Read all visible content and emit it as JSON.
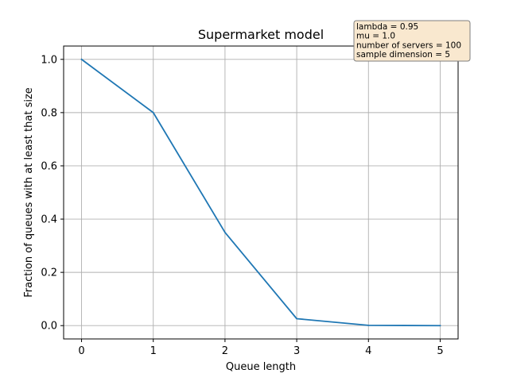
{
  "chart_data": {
    "type": "line",
    "title": "Supermarket model",
    "xlabel": "Queue length",
    "ylabel": "Fraction of queues with at least that size",
    "x": [
      0,
      1,
      2,
      3,
      4,
      5
    ],
    "series": [
      {
        "values": [
          1.0,
          0.8,
          0.35,
          0.026,
          0.001,
          0.0
        ]
      }
    ],
    "xlim": [
      -0.25,
      5.25
    ],
    "ylim": [
      -0.05,
      1.05
    ],
    "xticks": [
      "0",
      "1",
      "2",
      "3",
      "4",
      "5"
    ],
    "yticks": [
      "0.0",
      "0.2",
      "0.4",
      "0.6",
      "0.8",
      "1.0"
    ],
    "grid": true,
    "line_color": "#1f77b4",
    "annotation": {
      "placement": "top-right",
      "lines": [
        "lambda = 0.95",
        "mu = 1.0",
        "number of servers = 100",
        "sample dimension = 5"
      ],
      "background": "#f9e8cf"
    }
  }
}
